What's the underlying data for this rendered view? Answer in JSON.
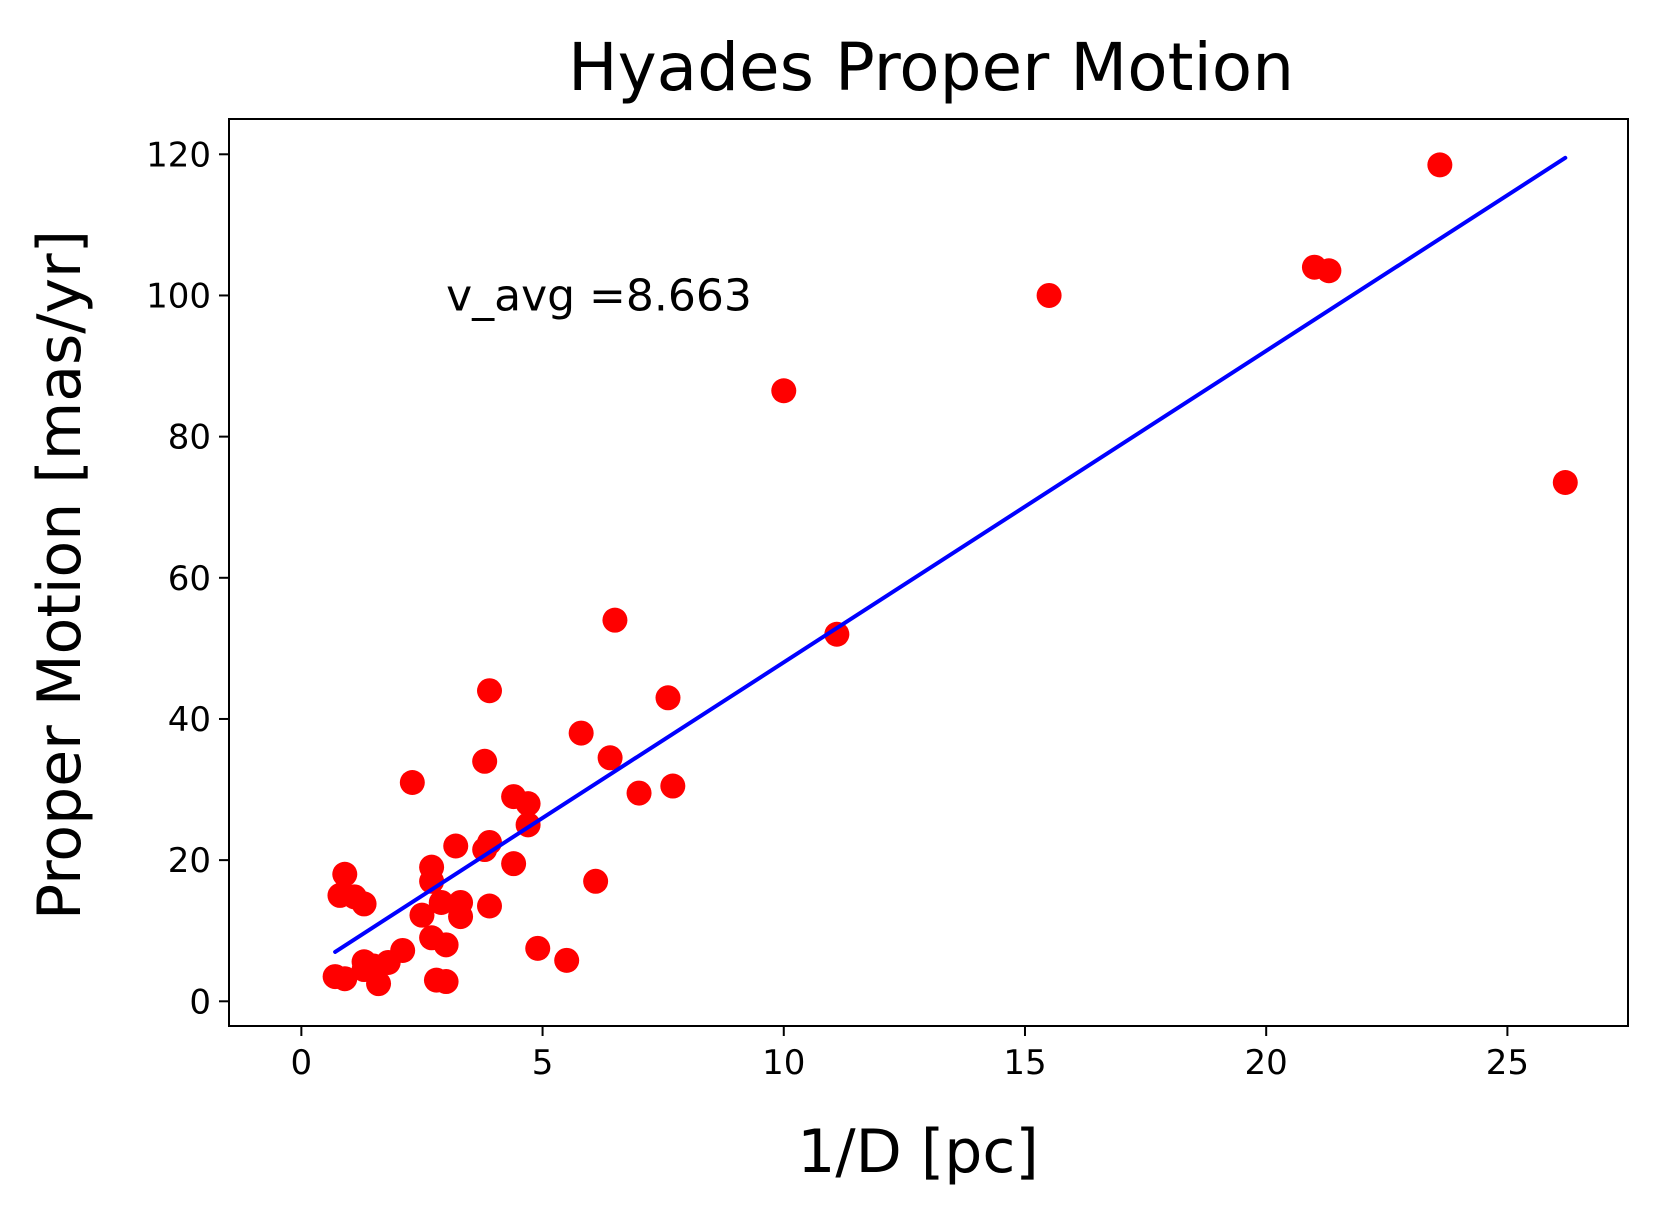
{
  "chart_data": {
    "type": "scatter",
    "title": "Hyades Proper Motion",
    "xlabel": "1/D [pc]",
    "ylabel": "Proper Motion [mas/yr]",
    "xlim": [
      -1.5,
      27.5
    ],
    "ylim": [
      -3.5,
      125
    ],
    "xticks": [
      0,
      5,
      10,
      15,
      20,
      25
    ],
    "yticks": [
      0,
      20,
      40,
      60,
      80,
      100,
      120
    ],
    "grid": false,
    "annotation": {
      "text": "v_avg =8.663",
      "x": 3.0,
      "y": 100
    },
    "series": [
      {
        "kind": "points",
        "color": "#ff0000",
        "points": [
          [
            0.7,
            3.5
          ],
          [
            0.9,
            3.2
          ],
          [
            0.8,
            15.0
          ],
          [
            0.9,
            18.0
          ],
          [
            1.1,
            14.8
          ],
          [
            1.3,
            13.8
          ],
          [
            1.3,
            5.6
          ],
          [
            1.3,
            4.5
          ],
          [
            1.5,
            5.0
          ],
          [
            1.6,
            2.5
          ],
          [
            1.8,
            5.5
          ],
          [
            2.1,
            7.2
          ],
          [
            2.3,
            31.0
          ],
          [
            2.5,
            12.2
          ],
          [
            2.7,
            19.0
          ],
          [
            2.7,
            17.0
          ],
          [
            2.7,
            9.0
          ],
          [
            2.8,
            3.0
          ],
          [
            2.9,
            14.0
          ],
          [
            3.0,
            2.8
          ],
          [
            3.0,
            8.0
          ],
          [
            3.2,
            22.0
          ],
          [
            3.3,
            14.0
          ],
          [
            3.3,
            12.0
          ],
          [
            3.8,
            34.0
          ],
          [
            3.8,
            21.5
          ],
          [
            3.9,
            22.5
          ],
          [
            3.9,
            13.5
          ],
          [
            3.9,
            44.0
          ],
          [
            4.4,
            29.0
          ],
          [
            4.4,
            19.5
          ],
          [
            4.7,
            28.0
          ],
          [
            4.7,
            25.0
          ],
          [
            4.9,
            7.5
          ],
          [
            5.5,
            5.8
          ],
          [
            5.8,
            38.0
          ],
          [
            6.1,
            17.0
          ],
          [
            6.4,
            34.5
          ],
          [
            6.5,
            54.0
          ],
          [
            7.0,
            29.5
          ],
          [
            7.6,
            43.0
          ],
          [
            7.7,
            30.5
          ],
          [
            10.0,
            86.5
          ],
          [
            11.1,
            52.0
          ],
          [
            15.5,
            100.0
          ],
          [
            21.0,
            104.0
          ],
          [
            21.3,
            103.5
          ],
          [
            23.6,
            118.5
          ],
          [
            26.2,
            73.5
          ]
        ]
      },
      {
        "kind": "fit-line",
        "color": "#0000ff",
        "x": [
          0.7,
          26.2
        ],
        "y": [
          7.0,
          119.5
        ]
      }
    ]
  }
}
